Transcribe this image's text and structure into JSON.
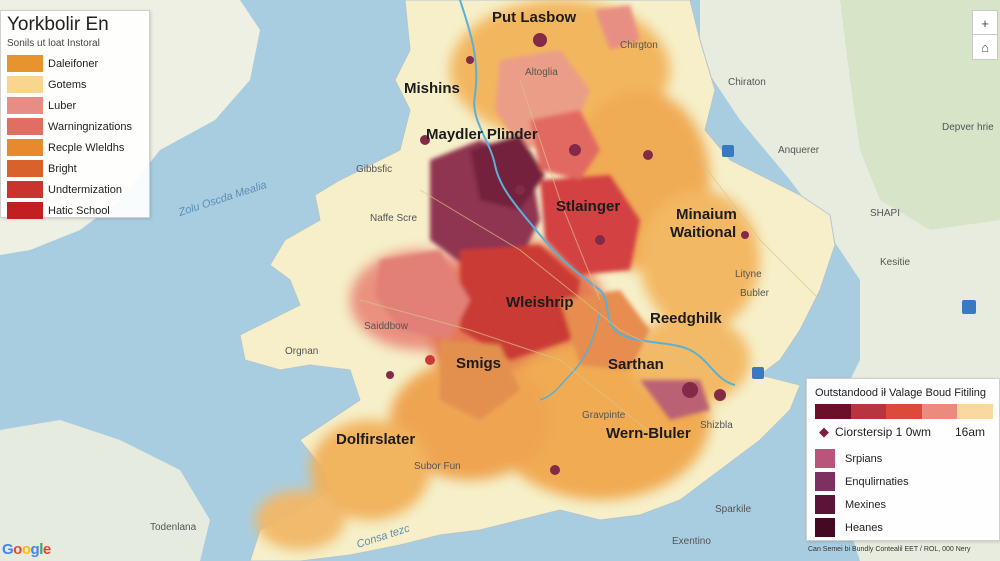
{
  "legend_left": {
    "title": "Yorkbolir En",
    "subtitle": "Sonils ut loat Instoral",
    "items": [
      {
        "label": "Daleifoner",
        "color": "#e8942e"
      },
      {
        "label": "Gotems",
        "color": "#f9d58e"
      },
      {
        "label": "Luber",
        "color": "#e88c86"
      },
      {
        "label": "Warningnizations",
        "color": "#e06e63"
      },
      {
        "label": "Recple Wleldhs",
        "color": "#e8892e"
      },
      {
        "label": "Bright",
        "color": "#d9612b"
      },
      {
        "label": "Undtermization",
        "color": "#c9342e"
      },
      {
        "label": "Hatic School",
        "color": "#c21f22"
      }
    ]
  },
  "legend_right": {
    "title": "Outstandood ił Valage Boud Fitiling",
    "ramp_colors": [
      "#6b0f2a",
      "#b93441",
      "#de4a3a",
      "#ea8b7e",
      "#f8d9a0"
    ],
    "scale_left": "Ciorstersip 1 0wm",
    "scale_right": "16am",
    "items": [
      {
        "label": "Srpians",
        "color": "#b9547a"
      },
      {
        "label": "Enqulirnaties",
        "color": "#7e3060"
      },
      {
        "label": "Mexines",
        "color": "#5c1338"
      },
      {
        "label": "Heanes",
        "color": "#440a24"
      }
    ]
  },
  "controls": {
    "zoom_in": "+",
    "home": "⌂"
  },
  "places": {
    "major": [
      {
        "id": "put-lasbow",
        "text": "Put Lasbow"
      },
      {
        "id": "mishins",
        "text": "Mishins"
      },
      {
        "id": "maydler-plinder",
        "text": "Maydler Plinder"
      },
      {
        "id": "stlainger",
        "text": "Stlainger"
      },
      {
        "id": "minaium",
        "text": "Minaium"
      },
      {
        "id": "waitional",
        "text": "Waitional"
      },
      {
        "id": "wleishrip",
        "text": "Wleishrip"
      },
      {
        "id": "reedghilk",
        "text": "Reedghilk"
      },
      {
        "id": "smigs",
        "text": "Smigs"
      },
      {
        "id": "sarthan",
        "text": "Sarthan"
      },
      {
        "id": "wern-bluler",
        "text": "Wern-Bluler"
      },
      {
        "id": "dolfirslater",
        "text": "Dolfirslater"
      }
    ],
    "minor": [
      {
        "id": "altoglia",
        "text": "Altoglia"
      },
      {
        "id": "chirgton",
        "text": "Chirgton"
      },
      {
        "id": "chiraton",
        "text": "Chiraton"
      },
      {
        "id": "depver-hrie",
        "text": "Depver hrie"
      },
      {
        "id": "anquerer",
        "text": "Anquerer"
      },
      {
        "id": "shapi",
        "text": "SHAPI"
      },
      {
        "id": "gibbsfic",
        "text": "Gibbsfic"
      },
      {
        "id": "naffe-scre",
        "text": "Naffe Scre"
      },
      {
        "id": "lityne",
        "text": "Lityne"
      },
      {
        "id": "bubler",
        "text": "Bubler"
      },
      {
        "id": "saiddbow",
        "text": "Saiddbow"
      },
      {
        "id": "orgnan",
        "text": "Orgnan"
      },
      {
        "id": "gravpinte",
        "text": "Gravpinte"
      },
      {
        "id": "shizbla",
        "text": "Shizbla"
      },
      {
        "id": "suborary-fm",
        "text": "Subor Fun"
      },
      {
        "id": "todenlana",
        "text": "Todenlana"
      },
      {
        "id": "exentino",
        "text": "Exentino"
      },
      {
        "id": "sparkile",
        "text": "Sparkile"
      },
      {
        "id": "kesitie",
        "text": "Kesitie"
      }
    ],
    "water": [
      {
        "id": "zolu-oscda-mealia",
        "text": "Zolu Oscda Mealia"
      },
      {
        "id": "conesa-tezc",
        "text": "Consa tezc"
      }
    ]
  },
  "attribution": "Can Semei bi Bundly Contealil EET / ROL, 000 Nery",
  "google_logo": "Google"
}
